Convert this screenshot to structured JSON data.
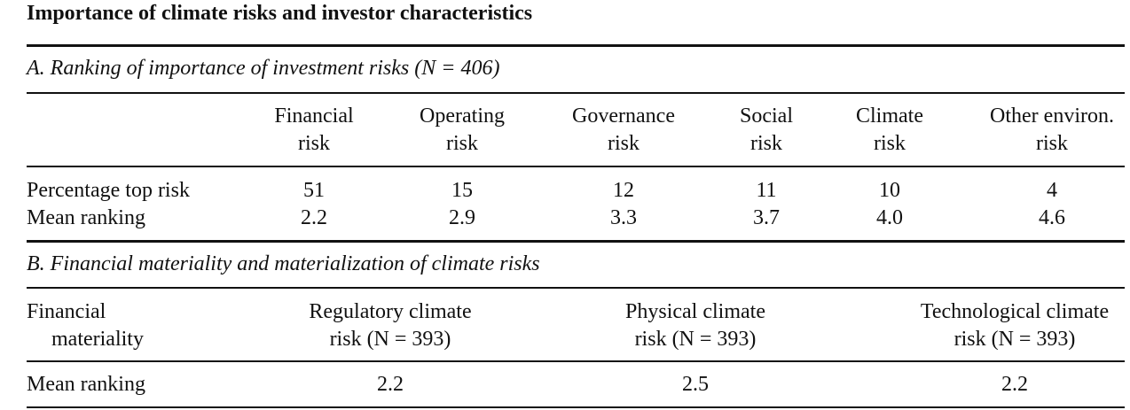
{
  "title": "Importance of climate risks and investor characteristics",
  "panel_a": {
    "title": "A. Ranking of importance of investment risks (N = 406)",
    "columns": [
      {
        "line1": "Financial",
        "line2": "risk"
      },
      {
        "line1": "Operating",
        "line2": "risk"
      },
      {
        "line1": "Governance",
        "line2": "risk"
      },
      {
        "line1": "Social",
        "line2": "risk"
      },
      {
        "line1": "Climate",
        "line2": "risk"
      },
      {
        "line1": "Other environ.",
        "line2": "risk"
      }
    ],
    "rows": [
      {
        "label": "Percentage top risk",
        "values": [
          "51",
          "15",
          "12",
          "11",
          "10",
          "4"
        ]
      },
      {
        "label": "Mean ranking",
        "values": [
          "2.2",
          "2.9",
          "3.3",
          "3.7",
          "4.0",
          "4.6"
        ]
      }
    ]
  },
  "panel_b": {
    "title": "B. Financial materiality and materialization of climate risks",
    "row_header": {
      "line1": "Financial",
      "line2": "materiality"
    },
    "columns": [
      {
        "line1": "Regulatory climate",
        "line2": "risk (N = 393)"
      },
      {
        "line1": "Physical climate",
        "line2": "risk (N = 393)"
      },
      {
        "line1": "Technological climate",
        "line2": "risk (N = 393)"
      }
    ],
    "rows": [
      {
        "label": "Mean ranking",
        "values": [
          "2.2",
          "2.5",
          "2.2"
        ]
      }
    ]
  }
}
